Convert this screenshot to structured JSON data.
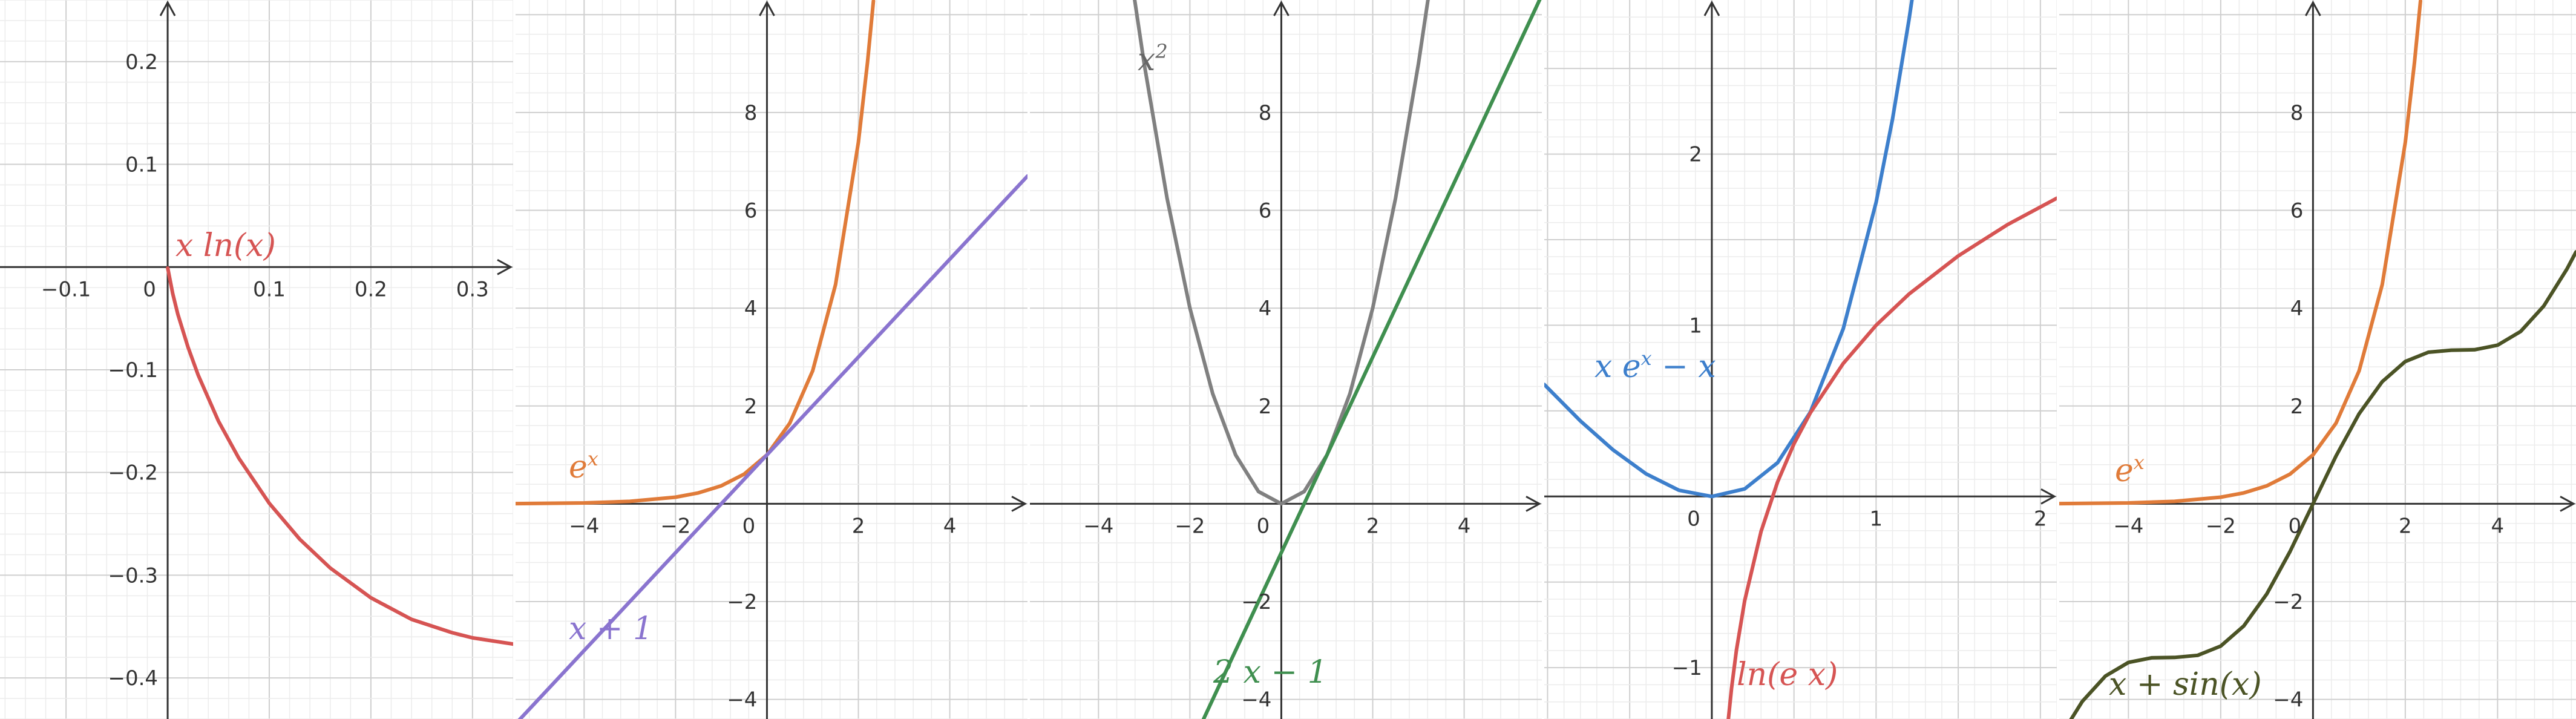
{
  "colors": {
    "red": "#d65453",
    "orange": "#e07b39",
    "purple": "#8a74cf",
    "gray": "#808080",
    "green": "#3f8f4f",
    "blue": "#3d7fcc",
    "olive": "#4b5325",
    "grid_major": "#cfcfcf",
    "grid_minor": "#ececec",
    "axis": "#333333"
  },
  "chart_data": [
    {
      "type": "line",
      "title": "",
      "xlim": [
        -0.165,
        0.34
      ],
      "ylim": [
        -0.44,
        0.26
      ],
      "x_ticks": [
        "-0.1",
        "0",
        "0.1",
        "0.2",
        "0.3"
      ],
      "y_ticks": [
        "0.2",
        "0.1",
        "-0.1",
        "-0.2",
        "-0.3",
        "-0.4"
      ],
      "grid": true,
      "series": [
        {
          "name": "x ln(x)",
          "color_key": "red",
          "x": [
            0.0001,
            0.005,
            0.01,
            0.02,
            0.03,
            0.05,
            0.07,
            0.1,
            0.13,
            0.16,
            0.2,
            0.24,
            0.28,
            0.3,
            0.34
          ],
          "y": [
            -0.001,
            -0.026,
            -0.046,
            -0.078,
            -0.105,
            -0.15,
            -0.186,
            -0.23,
            -0.265,
            -0.293,
            -0.322,
            -0.343,
            -0.356,
            -0.361,
            -0.367
          ]
        }
      ]
    },
    {
      "type": "line",
      "title": "",
      "xlim": [
        -5.5,
        5.7
      ],
      "ylim": [
        -4.4,
        10.3
      ],
      "x_ticks": [
        "-4",
        "-2",
        "0",
        "2",
        "4"
      ],
      "y_ticks": [
        "8",
        "6",
        "4",
        "2",
        "-2",
        "-4"
      ],
      "grid": true,
      "series": [
        {
          "name": "e^x",
          "color_key": "orange",
          "x": [
            -5.5,
            -5,
            -4,
            -3,
            -2,
            -1.5,
            -1,
            -0.5,
            0,
            0.5,
            1,
            1.5,
            2,
            2.2,
            2.33
          ],
          "y": [
            0.004,
            0.007,
            0.018,
            0.05,
            0.135,
            0.223,
            0.368,
            0.607,
            1,
            1.649,
            2.718,
            4.482,
            7.389,
            9.025,
            10.28
          ]
        },
        {
          "name": "x + 1",
          "color_key": "purple",
          "x": [
            -5.5,
            5.7
          ],
          "y": [
            -4.5,
            6.7
          ]
        }
      ]
    },
    {
      "type": "line",
      "title": "",
      "xlim": [
        -5.5,
        5.7
      ],
      "ylim": [
        -4.4,
        10.3
      ],
      "x_ticks": [
        "-4",
        "-2",
        "0",
        "2",
        "4"
      ],
      "y_ticks": [
        "8",
        "6",
        "4",
        "2",
        "-2",
        "-4"
      ],
      "grid": true,
      "series": [
        {
          "name": "x^2",
          "color_key": "gray",
          "x": [
            -3.25,
            -3,
            -2.5,
            -2,
            -1.5,
            -1,
            -0.5,
            0,
            0.5,
            1,
            1.5,
            2,
            2.5,
            3,
            3.25
          ],
          "y": [
            10.56,
            9,
            6.25,
            4,
            2.25,
            1,
            0.25,
            0,
            0.25,
            1,
            2.25,
            4,
            6.25,
            9,
            10.56
          ]
        },
        {
          "name": "2 x - 1",
          "color_key": "green",
          "x": [
            -1.7,
            5.7
          ],
          "y": [
            -4.4,
            10.4
          ]
        }
      ]
    },
    {
      "type": "line",
      "title": "",
      "xlim": [
        -1.02,
        2.1
      ],
      "ylim": [
        -1.3,
        2.9
      ],
      "x_ticks": [
        "0",
        "1",
        "2"
      ],
      "y_ticks": [
        "2",
        "1",
        "-1"
      ],
      "grid": true,
      "series": [
        {
          "name": "x e^x - x",
          "color_key": "blue",
          "x": [
            -1.02,
            -0.8,
            -0.6,
            -0.4,
            -0.2,
            0,
            0.2,
            0.4,
            0.6,
            0.8,
            1,
            1.1,
            1.2,
            1.24
          ],
          "y": [
            0.654,
            0.441,
            0.271,
            0.132,
            0.036,
            0,
            0.044,
            0.197,
            0.493,
            0.98,
            1.718,
            2.204,
            2.784,
            3.04
          ]
        },
        {
          "name": "ln(e x)",
          "color_key": "red",
          "x": [
            0.095,
            0.12,
            0.15,
            0.2,
            0.3,
            0.4,
            0.5,
            0.6,
            0.8,
            1,
            1.2,
            1.5,
            1.8,
            2.1
          ],
          "y": [
            -1.354,
            -1.12,
            -0.897,
            -0.609,
            -0.204,
            0.084,
            0.307,
            0.489,
            0.777,
            1,
            1.182,
            1.405,
            1.588,
            1.742
          ]
        }
      ]
    },
    {
      "type": "line",
      "title": "",
      "xlim": [
        -5.5,
        5.7
      ],
      "ylim": [
        -4.4,
        10.3
      ],
      "x_ticks": [
        "-4",
        "-2",
        "0",
        "2",
        "4"
      ],
      "y_ticks": [
        "8",
        "6",
        "4",
        "2",
        "-2",
        "-4"
      ],
      "grid": true,
      "series": [
        {
          "name": "e^x",
          "color_key": "orange",
          "x": [
            -5.5,
            -5,
            -4,
            -3,
            -2,
            -1.5,
            -1,
            -0.5,
            0,
            0.5,
            1,
            1.5,
            2,
            2.2,
            2.33
          ],
          "y": [
            0.004,
            0.007,
            0.018,
            0.05,
            0.135,
            0.223,
            0.368,
            0.607,
            1,
            1.649,
            2.718,
            4.482,
            7.389,
            9.025,
            10.28
          ]
        },
        {
          "name": "x + sin(x)",
          "color_key": "olive",
          "x": [
            -5.5,
            -5,
            -4.5,
            -4,
            -3.5,
            -3,
            -2.5,
            -2,
            -1.5,
            -1,
            -0.5,
            0,
            0.5,
            1,
            1.5,
            2,
            2.5,
            3,
            3.5,
            4,
            4.5,
            5,
            5.5,
            5.7
          ],
          "y": [
            -4.795,
            -4.041,
            -3.523,
            -3.243,
            -3.149,
            -3.141,
            -3.098,
            -2.909,
            -2.497,
            -1.841,
            -0.979,
            0,
            0.979,
            1.841,
            2.497,
            2.909,
            3.098,
            3.141,
            3.149,
            3.243,
            3.523,
            4.041,
            4.795,
            5.149
          ]
        }
      ]
    }
  ],
  "labels": {
    "p1_f1": "x ln(x)",
    "p2_f1": "e^x",
    "p2_f2": "x + 1",
    "p3_f1": "x^2",
    "p3_f2": "2 x − 1",
    "p4_f1": "x e^x − x",
    "p4_f2": "ln(e x)",
    "p5_f1": "e^x",
    "p5_f2": "x + sin(x)"
  }
}
